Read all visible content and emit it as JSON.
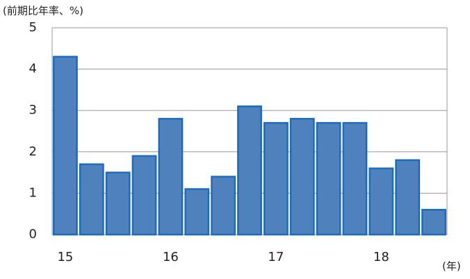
{
  "chart_data": {
    "type": "bar",
    "y_label": "(前期比年率、%)",
    "x_label": "(年)",
    "categories": [
      "15",
      null,
      null,
      null,
      "16",
      null,
      null,
      null,
      "17",
      null,
      null,
      null,
      "18",
      null,
      null
    ],
    "values": [
      4.3,
      1.7,
      1.5,
      1.9,
      2.8,
      1.1,
      1.4,
      3.1,
      2.7,
      2.8,
      2.7,
      2.7,
      1.6,
      1.8,
      0.6
    ],
    "color": "#4f81bd",
    "ylim": [
      0,
      5
    ],
    "yticks": [
      0,
      1,
      2,
      3,
      4,
      5
    ],
    "grid": true
  }
}
